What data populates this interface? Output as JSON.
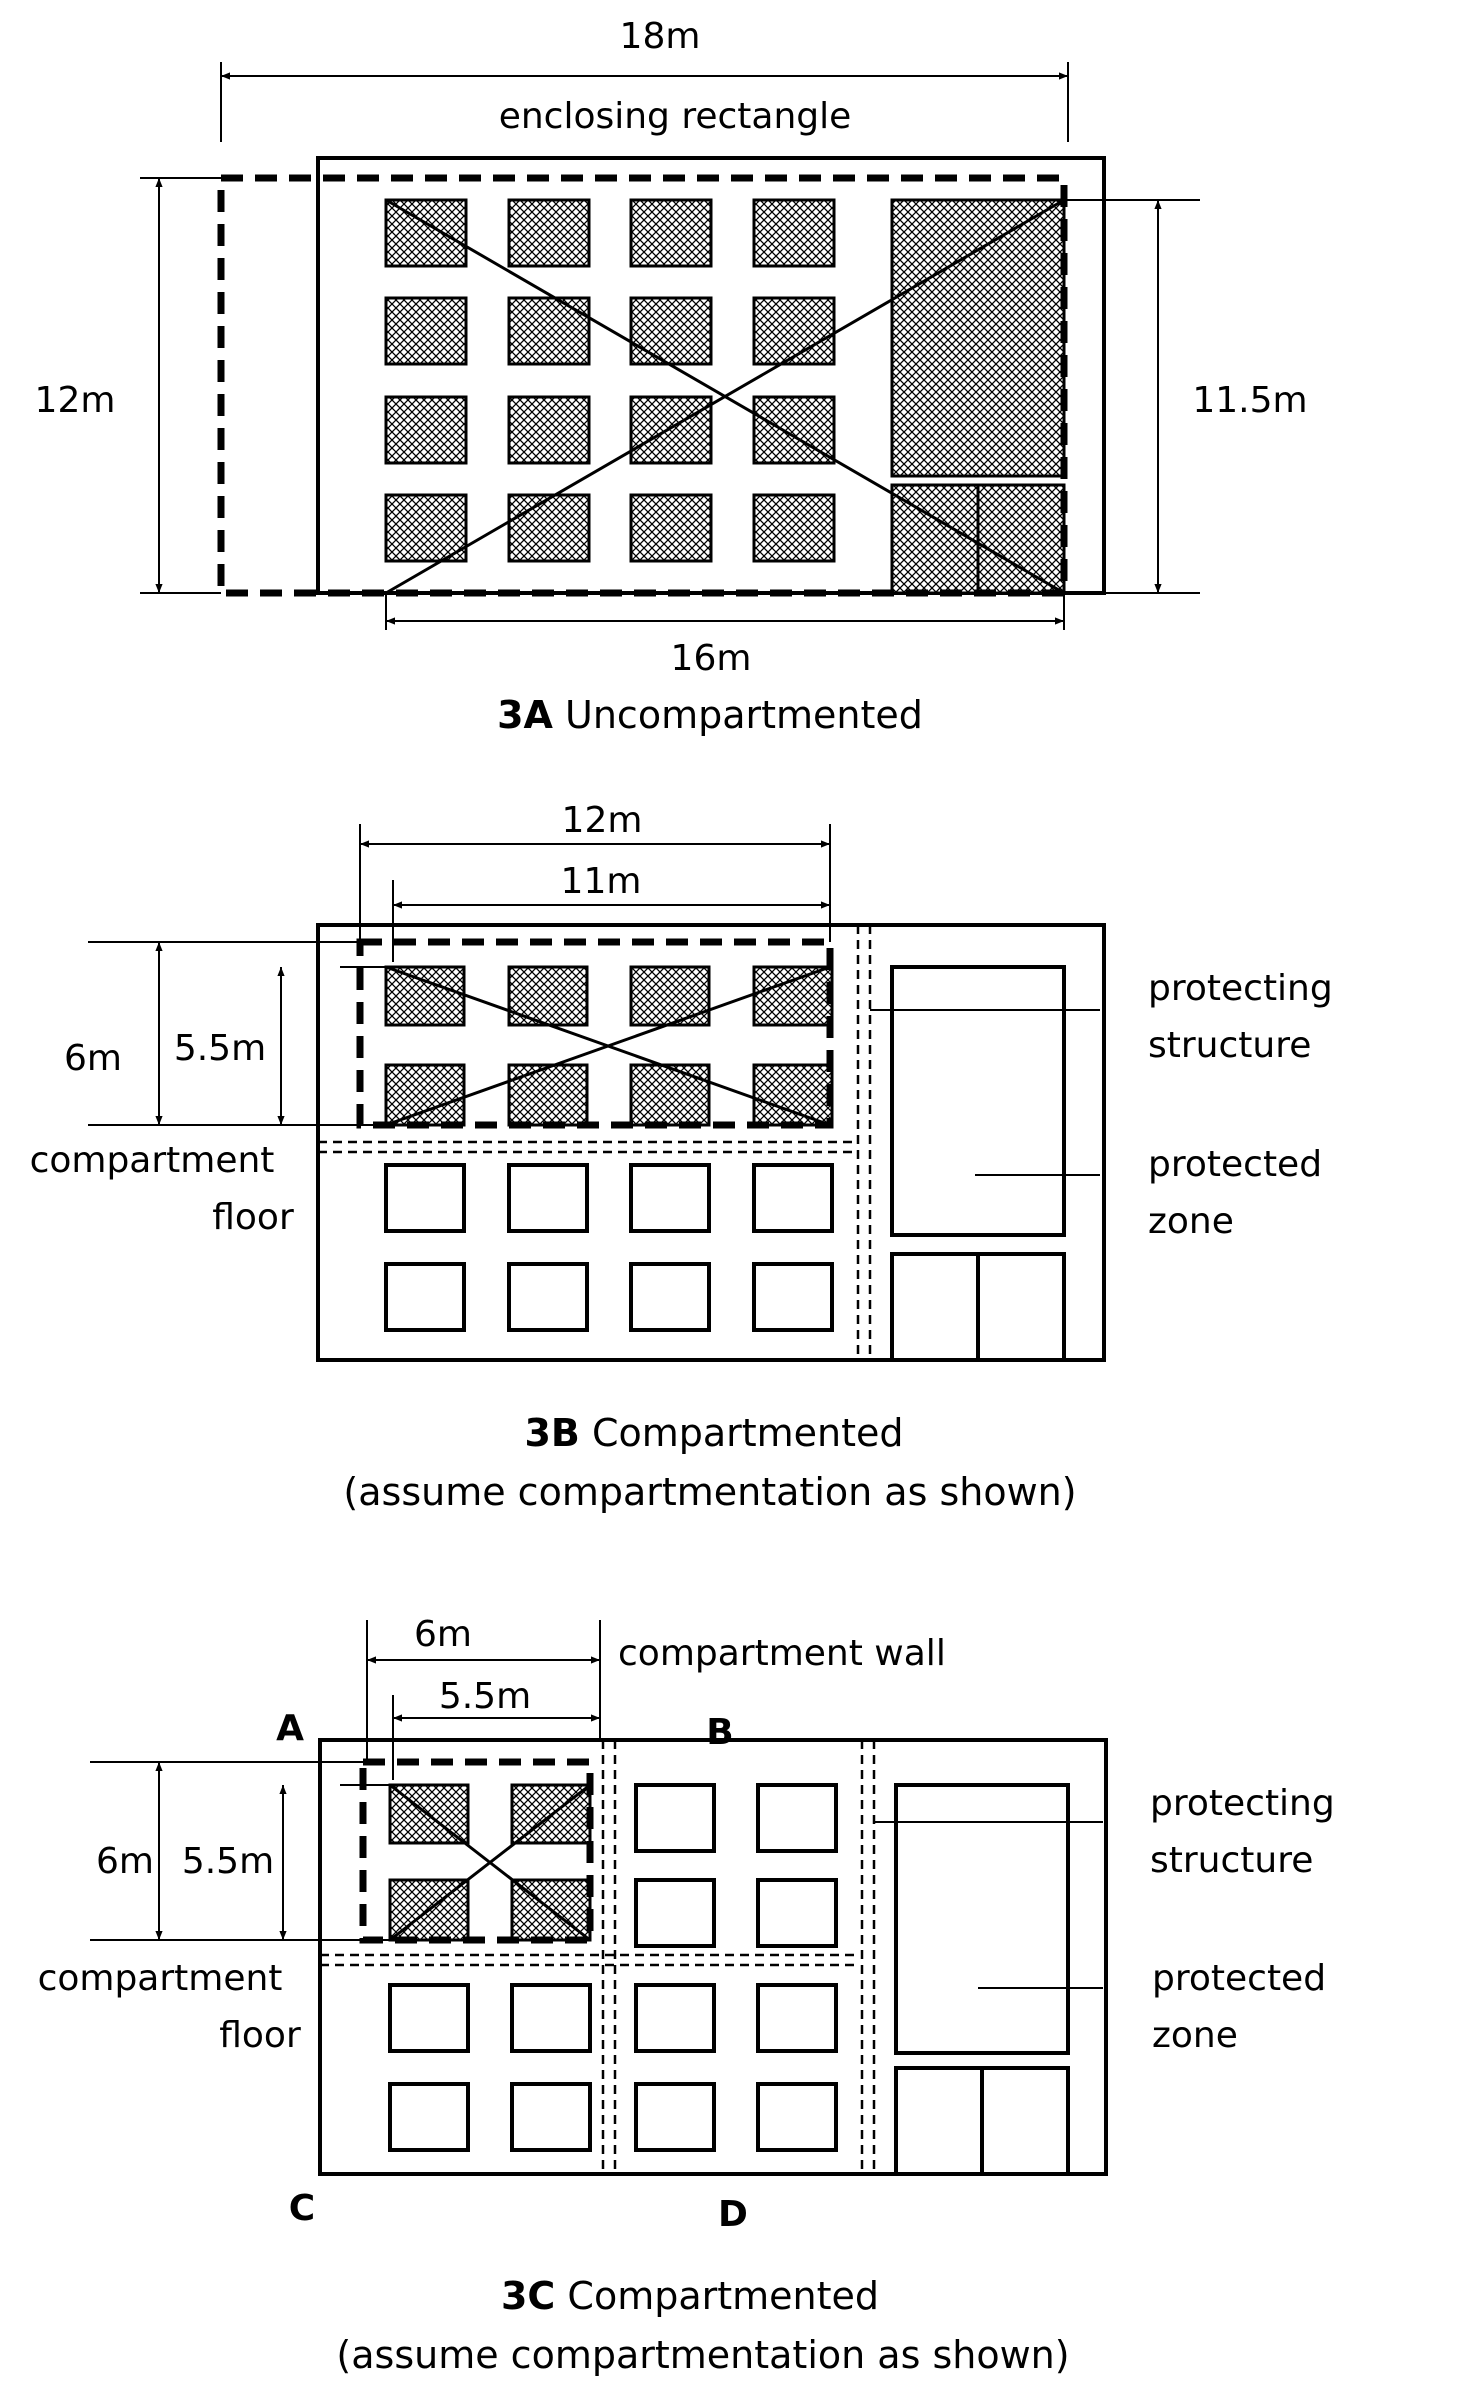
{
  "a": {
    "dim_top": "18m",
    "enclosing": "enclosing rectangle",
    "dim_left": "12m",
    "dim_right": "11.5m",
    "dim_bottom": "16m",
    "title_bold": "3A",
    "title_rest": "Uncompartmented"
  },
  "b": {
    "dim_outer": "12m",
    "dim_inner": "11m",
    "dim_left_outer": "6m",
    "dim_left_inner": "5.5m",
    "compartment_1": "compartment",
    "compartment_2": "floor",
    "protecting_1": "protecting",
    "protecting_2": "structure",
    "protected_1": "protected",
    "protected_2": "zone",
    "title_bold": "3B",
    "title_rest": "Compartmented",
    "subtitle": "(assume compartmentation as shown)"
  },
  "c": {
    "dim_outer": "6m",
    "dim_inner": "5.5m",
    "wall_label": "compartment wall",
    "dim_left_outer": "6m",
    "dim_left_inner": "5.5m",
    "corner_a": "A",
    "corner_b": "B",
    "corner_c": "C",
    "corner_d": "D",
    "compartment_1": "compartment",
    "compartment_2": "floor",
    "protecting_1": "protecting",
    "protecting_2": "structure",
    "protected_1": "protected",
    "protected_2": "zone",
    "title_bold": "3C",
    "title_rest": "Compartmented",
    "subtitle": "(assume compartmentation as shown)"
  }
}
